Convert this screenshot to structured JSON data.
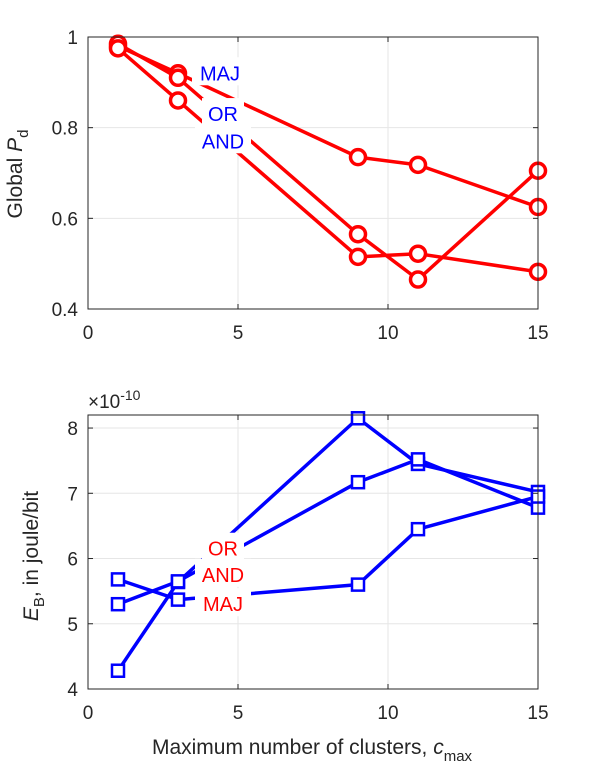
{
  "chart_data": [
    {
      "type": "line",
      "x": [
        1,
        3,
        9,
        11,
        15
      ],
      "xlim": [
        0,
        15
      ],
      "ylim": [
        0.4,
        1
      ],
      "xticks": [
        "0",
        "5",
        "10",
        "15"
      ],
      "yticks": [
        "0.4",
        "0.6",
        "0.8",
        "1"
      ],
      "ylabel_main": "Global ",
      "ylabel_italic": "P",
      "ylabel_sub": "d",
      "grid": true,
      "marker": "circle",
      "color": "#ff0000",
      "series": [
        {
          "name": "MAJ",
          "values": [
            0.98,
            0.92,
            0.735,
            0.718,
            0.625
          ]
        },
        {
          "name": "OR",
          "values": [
            0.985,
            0.91,
            0.565,
            0.465,
            0.705
          ]
        },
        {
          "name": "AND",
          "values": [
            0.975,
            0.86,
            0.515,
            0.522,
            0.482
          ]
        }
      ],
      "annotations": [
        {
          "text": "MAJ",
          "x": 4.4,
          "y": 0.92,
          "color": "#0000ff"
        },
        {
          "text": "OR",
          "x": 4.5,
          "y": 0.83,
          "color": "#0000ff"
        },
        {
          "text": "AND",
          "x": 4.5,
          "y": 0.77,
          "color": "#0000ff"
        }
      ]
    },
    {
      "type": "line",
      "x": [
        1,
        3,
        9,
        11,
        15
      ],
      "xlim": [
        0,
        15
      ],
      "ylim": [
        4,
        8.2
      ],
      "xticks": [
        "0",
        "5",
        "10",
        "15"
      ],
      "yticks": [
        "4",
        "5",
        "6",
        "7",
        "8"
      ],
      "multiplier": "×10",
      "multiplier_exp": "-10",
      "xlabel_main": "Maximum number of clusters, ",
      "xlabel_italic": "c",
      "xlabel_sub": "max",
      "ylabel_italic": "E",
      "ylabel_sub": "B",
      "ylabel_main": ", in joule/bit",
      "grid": true,
      "marker": "square",
      "color": "#0000ff",
      "series": [
        {
          "name": "OR",
          "values": [
            4.28,
            5.64,
            8.15,
            7.45,
            7.02
          ]
        },
        {
          "name": "AND",
          "values": [
            5.3,
            5.65,
            7.17,
            7.52,
            6.78
          ]
        },
        {
          "name": "MAJ",
          "values": [
            5.68,
            5.37,
            5.6,
            6.45,
            6.95
          ]
        }
      ],
      "annotations": [
        {
          "text": "OR",
          "x": 4.5,
          "y": 6.15,
          "color": "#ff0000"
        },
        {
          "text": "AND",
          "x": 4.5,
          "y": 5.75,
          "color": "#ff0000"
        },
        {
          "text": "MAJ",
          "x": 4.5,
          "y": 5.3,
          "color": "#ff0000"
        }
      ]
    }
  ]
}
